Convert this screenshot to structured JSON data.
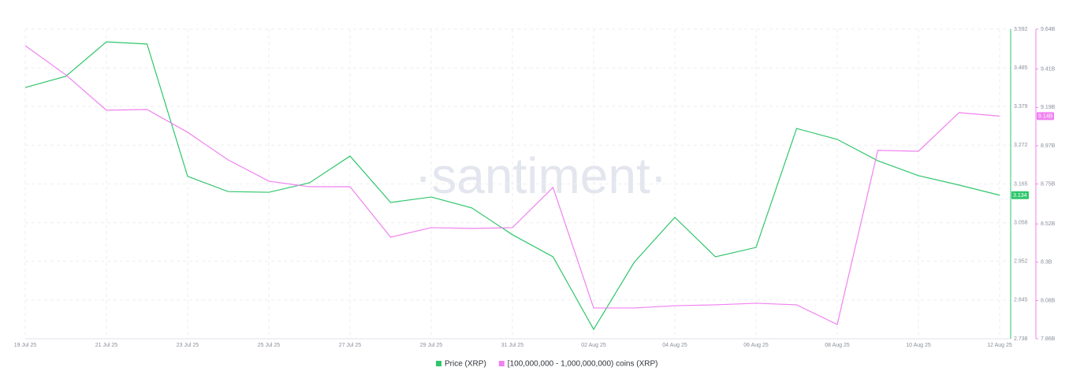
{
  "chart_data": {
    "type": "line",
    "watermark": "·santiment·",
    "categories": [
      "19 Jul 25",
      null,
      "21 Jul 25",
      null,
      "23 Jul 25",
      null,
      "25 Jul 25",
      null,
      "27 Jul 25",
      null,
      "29 Jul 25",
      null,
      "31 Jul 25",
      null,
      "02 Aug 25",
      null,
      "04 Aug 25",
      null,
      "06 Aug 25",
      null,
      "08 Aug 25",
      null,
      "10 Aug 25",
      null,
      "12 Aug 25"
    ],
    "series": [
      {
        "name": "Price (XRP)",
        "color": "#2fc66b",
        "values": [
          3.431,
          3.462,
          3.557,
          3.551,
          3.186,
          3.144,
          3.142,
          3.168,
          3.242,
          3.114,
          3.129,
          3.099,
          3.025,
          2.964,
          2.764,
          2.949,
          3.073,
          2.964,
          2.99,
          3.318,
          3.288,
          3.229,
          3.188,
          3.162,
          3.134
        ],
        "value_labels": [
          null,
          null,
          null,
          null,
          null,
          null,
          null,
          null,
          null,
          null,
          null,
          null,
          null,
          null,
          null,
          null,
          null,
          null,
          null,
          null,
          null,
          null,
          null,
          null,
          "3.134"
        ]
      },
      {
        "name": "[100,000,000 - 1,000,000,000) coins (XRP)",
        "color": "#f081f0",
        "axis": "y2",
        "values": [
          9.545,
          9.377,
          9.174,
          9.178,
          9.047,
          8.888,
          8.766,
          8.734,
          8.734,
          8.444,
          8.499,
          8.494,
          8.499,
          8.73,
          8.037,
          8.037,
          8.05,
          8.055,
          8.064,
          8.055,
          7.942,
          8.943,
          8.938,
          9.16,
          9.14
        ],
        "value_labels": [
          null,
          null,
          null,
          null,
          null,
          null,
          null,
          null,
          null,
          null,
          null,
          null,
          null,
          null,
          null,
          null,
          null,
          null,
          null,
          null,
          null,
          null,
          null,
          null,
          "9.14B"
        ]
      }
    ],
    "ylim": [
      2.738,
      3.592
    ],
    "yticks": [
      2.738,
      2.845,
      2.952,
      3.058,
      3.165,
      3.272,
      3.379,
      3.485,
      3.592
    ],
    "y2lim": [
      7.86,
      9.64
    ],
    "y2ticks": [
      {
        "value": 7.86,
        "label": "7.86B"
      },
      {
        "value": 8.08,
        "label": "8.08B"
      },
      {
        "value": 8.3,
        "label": "8.3B"
      },
      {
        "value": 8.52,
        "label": "8.52B"
      },
      {
        "value": 8.75,
        "label": "8.75B"
      },
      {
        "value": 8.97,
        "label": "8.97B"
      },
      {
        "value": 9.19,
        "label": "9.19B"
      },
      {
        "value": 9.41,
        "label": "9.41B"
      },
      {
        "value": 9.64,
        "label": "9.64B"
      }
    ],
    "grid": true,
    "legend": "bottom"
  }
}
